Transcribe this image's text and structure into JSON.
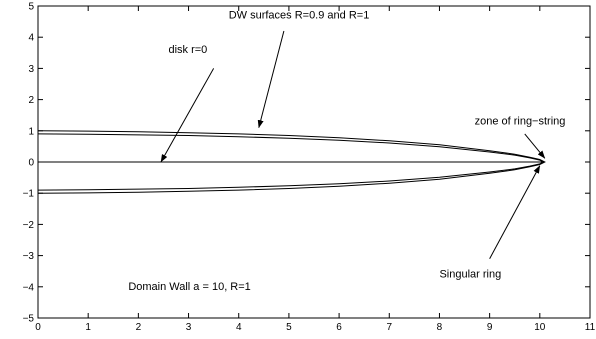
{
  "chart_data": {
    "type": "line",
    "title": "",
    "xlabel": "",
    "ylabel": "",
    "xlim": [
      0,
      11
    ],
    "ylim": [
      -5,
      5
    ],
    "xticks": [
      0,
      1,
      2,
      3,
      4,
      5,
      6,
      7,
      8,
      9,
      10,
      11
    ],
    "yticks": [
      -5,
      -4,
      -3,
      -2,
      -1,
      0,
      1,
      2,
      3,
      4,
      5
    ],
    "grid": false,
    "series": [
      {
        "description": "DW surface R=1",
        "color": "#000000",
        "points": [
          [
            0,
            1.0
          ],
          [
            1,
            0.99
          ],
          [
            2,
            0.97
          ],
          [
            3,
            0.94
          ],
          [
            4,
            0.9
          ],
          [
            5,
            0.85
          ],
          [
            6,
            0.78
          ],
          [
            7,
            0.68
          ],
          [
            8,
            0.55
          ],
          [
            9,
            0.36
          ],
          [
            9.5,
            0.25
          ],
          [
            9.8,
            0.15
          ],
          [
            10.0,
            0.08
          ],
          [
            10.1,
            0.0
          ],
          [
            10.0,
            -0.08
          ],
          [
            9.8,
            -0.15
          ],
          [
            9.5,
            -0.25
          ],
          [
            9,
            -0.36
          ],
          [
            8,
            -0.55
          ],
          [
            7,
            -0.68
          ],
          [
            6,
            -0.78
          ],
          [
            5,
            -0.85
          ],
          [
            4,
            -0.9
          ],
          [
            3,
            -0.94
          ],
          [
            2,
            -0.97
          ],
          [
            1,
            -0.99
          ],
          [
            0,
            -1.0
          ]
        ]
      },
      {
        "description": "DW surface R=0.9",
        "color": "#000000",
        "points": [
          [
            0,
            0.9
          ],
          [
            1,
            0.89
          ],
          [
            2,
            0.87
          ],
          [
            3,
            0.85
          ],
          [
            4,
            0.81
          ],
          [
            5,
            0.76
          ],
          [
            6,
            0.7
          ],
          [
            7,
            0.61
          ],
          [
            8,
            0.49
          ],
          [
            9,
            0.32
          ],
          [
            9.5,
            0.22
          ],
          [
            9.8,
            0.13
          ],
          [
            10.0,
            0.06
          ],
          [
            10.06,
            0.0
          ],
          [
            10.0,
            -0.06
          ],
          [
            9.8,
            -0.13
          ],
          [
            9.5,
            -0.22
          ],
          [
            9,
            -0.32
          ],
          [
            8,
            -0.49
          ],
          [
            7,
            -0.61
          ],
          [
            6,
            -0.7
          ],
          [
            5,
            -0.76
          ],
          [
            4,
            -0.81
          ],
          [
            3,
            -0.85
          ],
          [
            2,
            -0.87
          ],
          [
            1,
            -0.89
          ],
          [
            0,
            -0.9
          ]
        ]
      },
      {
        "description": "disk r=0",
        "color": "#000000",
        "points": [
          [
            0,
            0
          ],
          [
            10.1,
            0
          ]
        ]
      }
    ],
    "annotations": [
      {
        "text": "DW surfaces R=0.9 and R=1",
        "label_pos": [
          3.8,
          4.6
        ],
        "arrow_from": [
          4.9,
          4.2
        ],
        "arrow_to": [
          4.4,
          1.1
        ]
      },
      {
        "text": "disk r=0",
        "label_pos": [
          2.6,
          3.5
        ],
        "arrow_from": [
          3.5,
          3.0
        ],
        "arrow_to": [
          2.45,
          0.0
        ]
      },
      {
        "text": "zone of ring−string",
        "label_pos": [
          8.7,
          1.2
        ],
        "arrow_from": [
          9.7,
          0.9
        ],
        "arrow_to": [
          10.1,
          0.12
        ]
      },
      {
        "text": "Singular ring",
        "label_pos": [
          8.0,
          -3.7
        ],
        "arrow_from": [
          9.0,
          -3.1
        ],
        "arrow_to": [
          10.0,
          -0.12
        ]
      },
      {
        "text": "Domain Wall  a = 10, R=1",
        "label_pos": [
          1.8,
          -4.1
        ]
      }
    ]
  }
}
